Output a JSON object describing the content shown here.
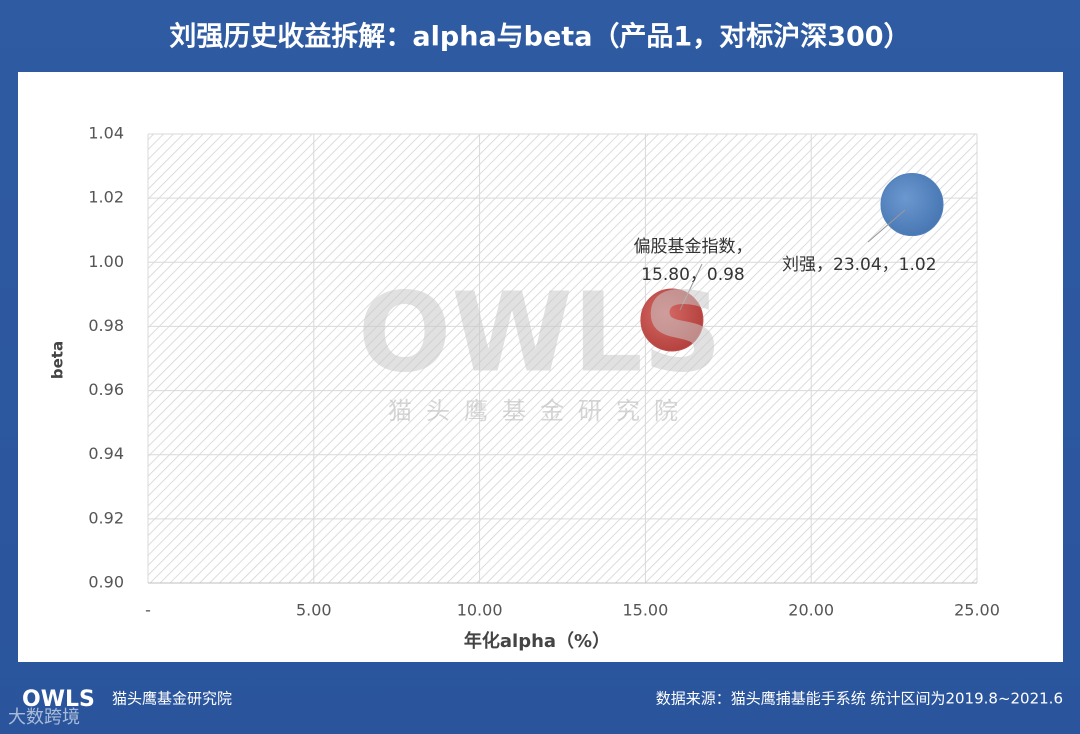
{
  "chart_data": {
    "type": "bubble",
    "title": "刘强历史收益拆解：alpha与beta（产品1，对标沪深300）",
    "x_label": "年化alpha（%）",
    "y_label": "beta",
    "x": [
      15.8,
      23.04
    ],
    "values": [
      0.982,
      1.018
    ],
    "colors": [
      "#c0504d",
      "#4f81bd"
    ],
    "data_labels": [
      [
        "偏股基金指数，",
        "15.80，0.98"
      ],
      [
        "刘强，23.04，1.02"
      ]
    ],
    "xlim": [
      0,
      25
    ],
    "xticks": [
      {
        "value": 0,
        "label": "-"
      },
      {
        "value": 5,
        "label": "5.00"
      },
      {
        "value": 10,
        "label": "10.00"
      },
      {
        "value": 15,
        "label": "15.00"
      },
      {
        "value": 20,
        "label": "20.00"
      },
      {
        "value": 25,
        "label": "25.00"
      }
    ],
    "ylim": [
      0.9,
      1.04
    ],
    "yticks": [
      {
        "value": 0.9,
        "label": "0.90"
      },
      0.92,
      0.94,
      0.96,
      0.98,
      {
        "value": 1,
        "label": "1.00"
      },
      1.02,
      1.04
    ],
    "grid": true
  },
  "watermark": {
    "logo": "OWLS",
    "name": "猫头鹰基金研究院"
  },
  "footer": {
    "logo": "OWLS",
    "name": "猫头鹰基金研究院",
    "source": "数据来源：猫头鹰捕基能手系统   统计区间为2019.8~2021.6",
    "corner_mark": "大数跨境"
  }
}
